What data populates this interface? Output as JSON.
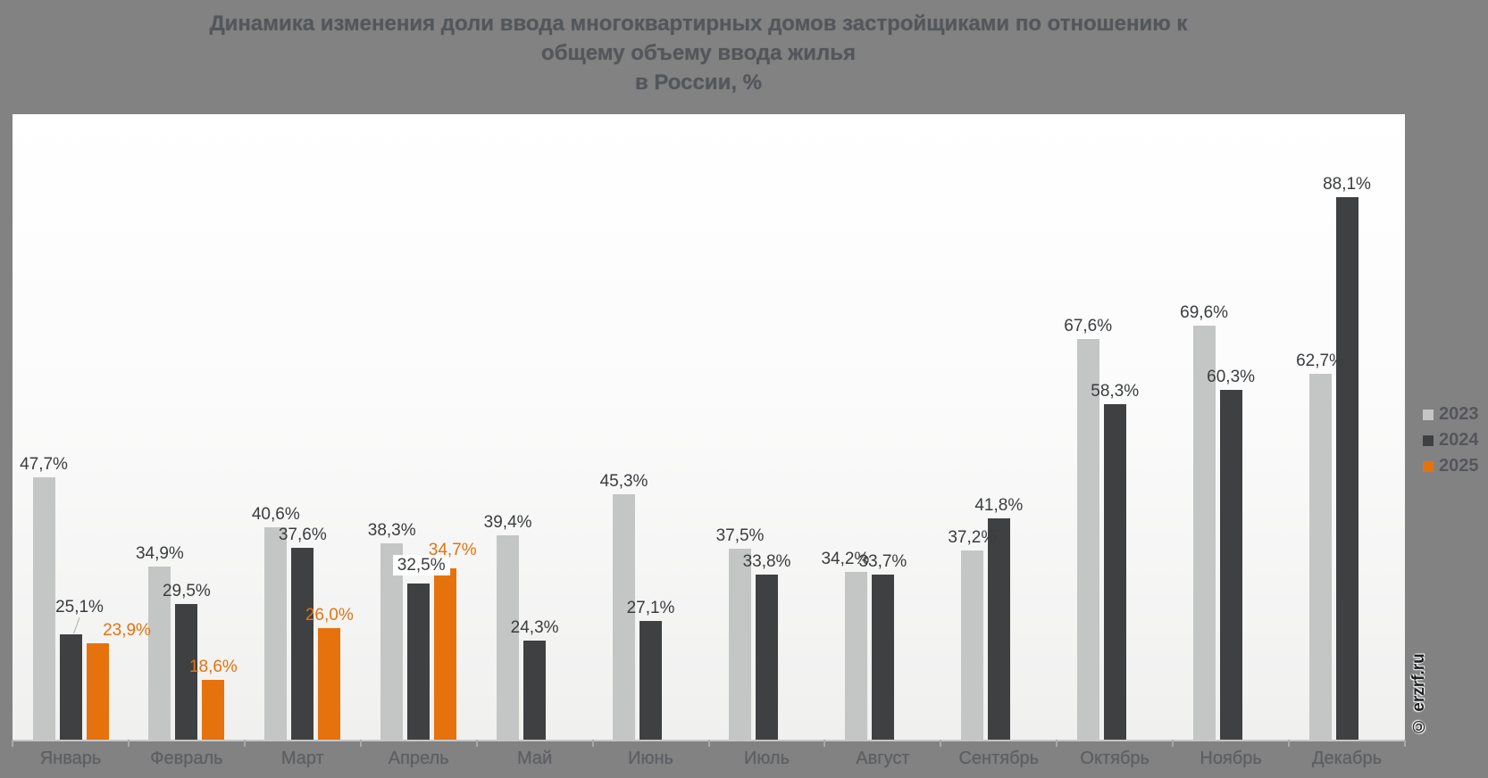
{
  "title": {
    "lines": [
      "Динамика изменения доли ввода многоквартирных домов застройщиками по отношению к",
      "общему объему ввода жилья",
      "в России, %"
    ]
  },
  "watermark": "© erzrf.ru",
  "colors": {
    "background": "#828282",
    "series_2023": "#c4c5c5",
    "series_2024": "#3e4042",
    "series_2025": "#e6720e",
    "label_dark": "#3a3c3e",
    "label_orange": "#e6720e"
  },
  "chart_data": {
    "type": "bar",
    "title": "Динамика изменения доли ввода многоквартирных домов застройщиками по отношению к общему объему ввода жилья в России, %",
    "xlabel": "",
    "ylabel": "",
    "unit": "%",
    "ylim": [
      10,
      100
    ],
    "grid": false,
    "legend_position": "right",
    "categories": [
      "Январь",
      "Февраль",
      "Март",
      "Апрель",
      "Май",
      "Июнь",
      "Июль",
      "Август",
      "Сентябрь",
      "Октябрь",
      "Ноябрь",
      "Декабрь"
    ],
    "series": [
      {
        "name": "2023",
        "color": "#c4c5c5",
        "label_color": "#3a3c3e",
        "values": [
          47.7,
          34.9,
          40.6,
          38.3,
          39.4,
          45.3,
          37.5,
          34.2,
          37.2,
          67.6,
          69.6,
          62.7
        ],
        "labels": [
          "47,7%",
          "34,9%",
          "40,6%",
          "38,3%",
          "39,4%",
          "45,3%",
          "37,5%",
          "34,2%",
          "37,2%",
          "67,6%",
          "69,6%",
          "62,7%"
        ]
      },
      {
        "name": "2024",
        "color": "#3e4042",
        "label_color": "#3a3c3e",
        "values": [
          25.1,
          29.5,
          37.6,
          32.5,
          24.3,
          27.1,
          33.8,
          33.7,
          41.8,
          58.3,
          60.3,
          88.1
        ],
        "labels": [
          "25,1%",
          "29,5%",
          "37,6%",
          "32,5%",
          "24,3%",
          "27,1%",
          "33,8%",
          "33,7%",
          "41,8%",
          "58,3%",
          "60,3%",
          "88,1%"
        ]
      },
      {
        "name": "2025",
        "color": "#e6720e",
        "label_color": "#e6720e",
        "values": [
          23.9,
          18.6,
          26.0,
          34.7,
          null,
          null,
          null,
          null,
          null,
          null,
          null,
          null
        ],
        "labels": [
          "23,9%",
          "18,6%",
          "26,0%",
          "34,7%",
          null,
          null,
          null,
          null,
          null,
          null,
          null,
          null
        ]
      }
    ]
  }
}
